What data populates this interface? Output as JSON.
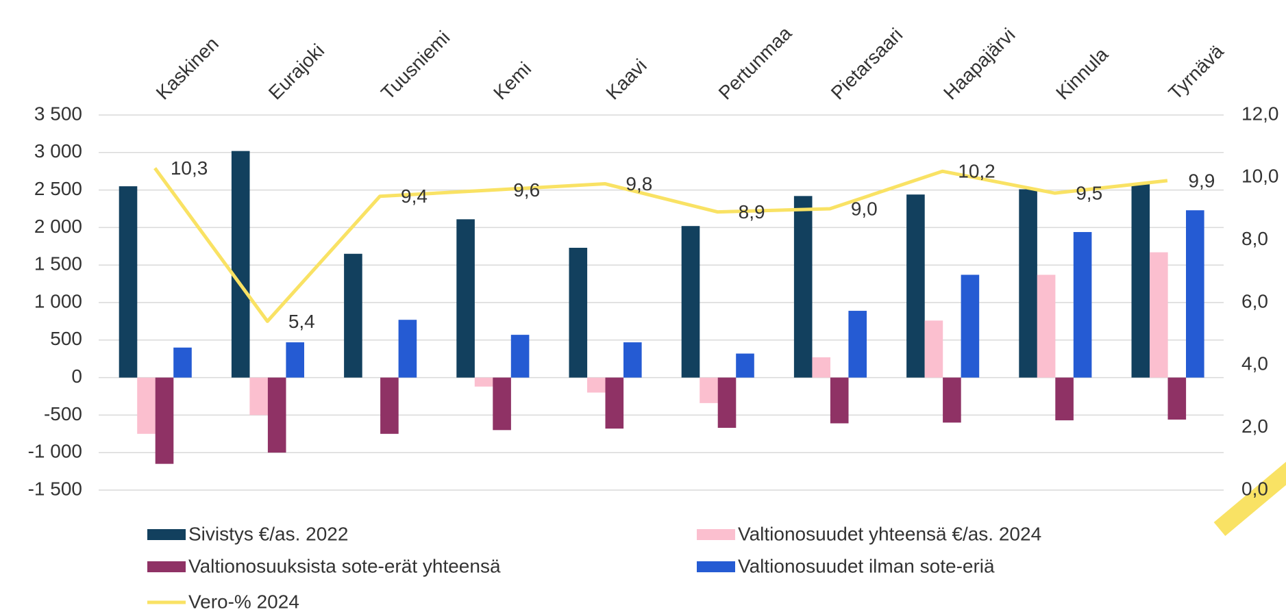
{
  "chart_data": {
    "type": "bar",
    "categories": [
      "Kaskinen",
      "Eurajoki",
      "Tuusniemi",
      "Kemi",
      "Kaavi",
      "Pertunmaa",
      "Pietarsaari",
      "Haapajärvi",
      "Kinnula",
      "Tyrnävä"
    ],
    "series": [
      {
        "name": "Sivistys €/as. 2022",
        "color": "#12405e",
        "values": [
          2550,
          3020,
          1650,
          2110,
          1730,
          2020,
          2420,
          2440,
          2510,
          2580
        ]
      },
      {
        "name": "Valtionosuudet yhteensä €/as. 2024",
        "color": "#fbbfcf",
        "values": [
          -750,
          -500,
          0,
          -120,
          -200,
          -340,
          270,
          760,
          1370,
          1670
        ]
      },
      {
        "name": "Valtionosuuksista sote-erät yhteensä",
        "color": "#8f3265",
        "values": [
          -1150,
          -1000,
          -750,
          -700,
          -680,
          -670,
          -610,
          -600,
          -570,
          -560
        ]
      },
      {
        "name": "Valtionosuudet ilman sote-eriä",
        "color": "#255bd3",
        "values": [
          400,
          470,
          770,
          570,
          470,
          320,
          890,
          1370,
          1940,
          2230
        ]
      },
      {
        "name": "Vero-% 2024",
        "color": "#f9e264",
        "type": "line",
        "axis": "y2",
        "values": [
          10.3,
          5.4,
          9.4,
          9.6,
          9.8,
          8.9,
          9.0,
          10.2,
          9.5,
          9.9
        ],
        "value_labels": [
          "10,3",
          "5,4",
          "9,4",
          "9,6",
          "9,8",
          "8,9",
          "9,0",
          "10,2",
          "9,5",
          "9,9"
        ]
      }
    ],
    "ylim": [
      -1500,
      3500
    ],
    "yticks": [
      {
        "value": -1500,
        "label": "-1 500"
      },
      {
        "value": -1000,
        "label": "-1 000"
      },
      {
        "value": -500,
        "label": "-500"
      },
      0,
      500,
      {
        "value": 1000,
        "label": "1 000"
      },
      {
        "value": 1500,
        "label": "1 500"
      },
      {
        "value": 2000,
        "label": "2 000"
      },
      {
        "value": 2500,
        "label": "2 500"
      },
      {
        "value": 3000,
        "label": "3 000"
      },
      {
        "value": 3500,
        "label": "3 500"
      }
    ],
    "y2lim": [
      0,
      12
    ],
    "y2ticks": [
      {
        "value": 0,
        "label": "0,0"
      },
      {
        "value": 2,
        "label": "2,0"
      },
      {
        "value": 4,
        "label": "4,0"
      },
      {
        "value": 6,
        "label": "6,0"
      },
      {
        "value": 8,
        "label": "8,0"
      },
      {
        "value": 10,
        "label": "10,0"
      },
      {
        "value": 12,
        "label": "12,0"
      }
    ],
    "grid": true,
    "legend": "bottom"
  }
}
